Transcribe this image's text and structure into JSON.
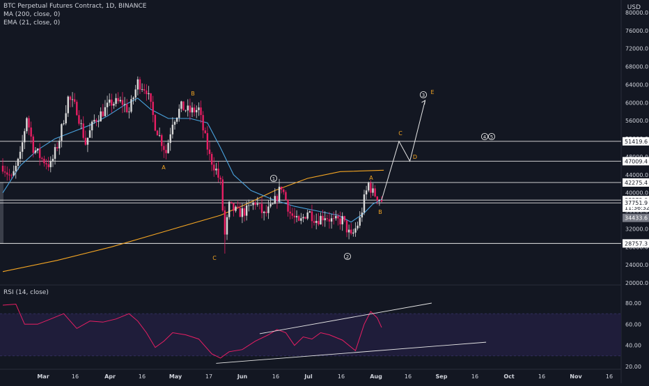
{
  "legend": {
    "symbol": "BTC Perpetual Futures Contract, 1D, BINANCE",
    "ma": "MA (200, close, 0)",
    "ema": "EMA (21, close, 0)",
    "rsi": "RSI (14, close)"
  },
  "price_axis": {
    "currency": "USD",
    "ticks": [
      "80000.0",
      "76000.0",
      "72000.0",
      "68000.0",
      "64000.0",
      "60000.0",
      "56000.0",
      "52000.0",
      "48000.0",
      "44000.0",
      "40000.0",
      "36000.0",
      "32000.0",
      "28000.0",
      "24000.0",
      "20000.0"
    ],
    "tick_values": [
      80000,
      76000,
      72000,
      68000,
      64000,
      60000,
      56000,
      52000,
      48000,
      44000,
      40000,
      36000,
      32000,
      28000,
      24000,
      20000
    ],
    "levels": [
      {
        "label": "51419.6",
        "value": 51419.6
      },
      {
        "label": "47009.4",
        "value": 47009.4
      },
      {
        "label": "42275.4",
        "value": 42275.4
      },
      {
        "label": "38379.6",
        "value": 38379.6
      },
      {
        "label": "37751.9",
        "value": 37751.9
      },
      {
        "label": "34433.6",
        "value": 34433.6
      },
      {
        "label": "28757.3",
        "value": 28757.3
      }
    ],
    "countdown": "11:36:32"
  },
  "rsi_axis": {
    "ticks": [
      "80.00",
      "60.00",
      "40.00",
      "20.00"
    ],
    "tick_values": [
      80,
      60,
      40,
      20
    ],
    "band": [
      30,
      70
    ]
  },
  "time_axis": {
    "labels": [
      "Mar",
      "16",
      "Apr",
      "16",
      "May",
      "17",
      "Jun",
      "16",
      "Jul",
      "16",
      "Aug",
      "16",
      "Sep",
      "16",
      "Oct",
      "16",
      "Nov",
      "16"
    ]
  },
  "annotations": {
    "wave_labels": [
      "A",
      "B",
      "C",
      "A",
      "B",
      "C",
      "D",
      "E"
    ],
    "wave_numbers": [
      "1",
      "2",
      "3",
      "4",
      "5"
    ]
  },
  "chart_data": {
    "type": "candlestick",
    "title": "BTC Perpetual Futures Contract, 1D, BINANCE",
    "ylim": [
      20000,
      82000
    ],
    "series": [
      {
        "name": "MA (200, close, 0)",
        "color": "#f5a623",
        "points": [
          [
            0,
            22500
          ],
          [
            25,
            25000
          ],
          [
            50,
            28000
          ],
          [
            75,
            31500
          ],
          [
            100,
            35000
          ],
          [
            112,
            37500
          ],
          [
            125,
            40500
          ],
          [
            140,
            43200
          ],
          [
            155,
            44700
          ],
          [
            175,
            45000
          ]
        ]
      },
      {
        "name": "EMA (21, close, 0)",
        "color": "#4aa3df",
        "points": [
          [
            0,
            40000
          ],
          [
            8,
            46000
          ],
          [
            16,
            49500
          ],
          [
            24,
            52000
          ],
          [
            32,
            53500
          ],
          [
            40,
            55000
          ],
          [
            48,
            57000
          ],
          [
            56,
            59500
          ],
          [
            62,
            61000
          ],
          [
            68,
            58500
          ],
          [
            76,
            56500
          ],
          [
            86,
            56500
          ],
          [
            94,
            55500
          ],
          [
            100,
            50000
          ],
          [
            106,
            44000
          ],
          [
            114,
            40500
          ],
          [
            124,
            38500
          ],
          [
            134,
            37000
          ],
          [
            144,
            36000
          ],
          [
            154,
            35000
          ],
          [
            160,
            33500
          ],
          [
            166,
            35500
          ],
          [
            170,
            37500
          ],
          [
            174,
            38500
          ]
        ]
      }
    ],
    "close_path": [
      [
        0,
        46000
      ],
      [
        4,
        43000
      ],
      [
        8,
        48000
      ],
      [
        11,
        57000
      ],
      [
        14,
        50000
      ],
      [
        18,
        47500
      ],
      [
        22,
        46000
      ],
      [
        26,
        52000
      ],
      [
        30,
        61000
      ],
      [
        34,
        58500
      ],
      [
        38,
        51000
      ],
      [
        42,
        56000
      ],
      [
        46,
        58000
      ],
      [
        50,
        60000
      ],
      [
        55,
        60000
      ],
      [
        58,
        58000
      ],
      [
        62,
        64500
      ],
      [
        66,
        63000
      ],
      [
        70,
        55000
      ],
      [
        72,
        52500
      ],
      [
        75,
        49000
      ],
      [
        78,
        56000
      ],
      [
        82,
        59000
      ],
      [
        86,
        58000
      ],
      [
        90,
        58500
      ],
      [
        92,
        54000
      ],
      [
        95,
        48000
      ],
      [
        98,
        45000
      ],
      [
        100,
        42000
      ],
      [
        102,
        30500
      ],
      [
        104,
        37000
      ],
      [
        108,
        35500
      ],
      [
        112,
        36000
      ],
      [
        116,
        38000
      ],
      [
        120,
        35000
      ],
      [
        124,
        37000
      ],
      [
        128,
        41500
      ],
      [
        132,
        35500
      ],
      [
        136,
        33000
      ],
      [
        140,
        36000
      ],
      [
        144,
        34000
      ],
      [
        148,
        35000
      ],
      [
        152,
        33500
      ],
      [
        156,
        34000
      ],
      [
        160,
        30000
      ],
      [
        162,
        32000
      ],
      [
        164,
        34000
      ],
      [
        166,
        38500
      ],
      [
        168,
        42000
      ],
      [
        170,
        40000
      ],
      [
        174,
        38300
      ]
    ],
    "rsi_path": [
      [
        0,
        78
      ],
      [
        6,
        79
      ],
      [
        10,
        60
      ],
      [
        16,
        60
      ],
      [
        22,
        65
      ],
      [
        28,
        70
      ],
      [
        34,
        56
      ],
      [
        40,
        63
      ],
      [
        46,
        62
      ],
      [
        52,
        65
      ],
      [
        58,
        70
      ],
      [
        62,
        63
      ],
      [
        66,
        52
      ],
      [
        70,
        38
      ],
      [
        74,
        44
      ],
      [
        78,
        52
      ],
      [
        84,
        50
      ],
      [
        90,
        46
      ],
      [
        96,
        32
      ],
      [
        100,
        28
      ],
      [
        104,
        34
      ],
      [
        110,
        36
      ],
      [
        116,
        44
      ],
      [
        122,
        50
      ],
      [
        126,
        55
      ],
      [
        130,
        52
      ],
      [
        134,
        40
      ],
      [
        138,
        48
      ],
      [
        142,
        46
      ],
      [
        146,
        52
      ],
      [
        150,
        50
      ],
      [
        156,
        45
      ],
      [
        162,
        35
      ],
      [
        166,
        60
      ],
      [
        169,
        72
      ],
      [
        172,
        66
      ],
      [
        174,
        57
      ]
    ],
    "projection": [
      [
        174,
        38379.6
      ],
      [
        182,
        51419.6
      ],
      [
        187,
        47009.4
      ],
      [
        194,
        60500
      ]
    ],
    "rsi_trendlines": [
      [
        [
          98,
          23
        ],
        [
          222,
          43
        ]
      ],
      [
        [
          118,
          51
        ],
        [
          197,
          80
        ]
      ]
    ]
  }
}
